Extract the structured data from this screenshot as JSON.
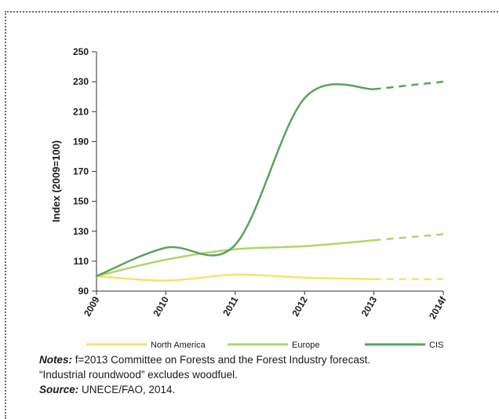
{
  "chart_data": {
    "type": "line",
    "ylabel": "Index (2009=100)",
    "xlabel": "",
    "categories": [
      "2009",
      "2010",
      "2011",
      "2012",
      "2013",
      "2014f"
    ],
    "ylim": [
      90,
      250
    ],
    "yticks": [
      90,
      110,
      130,
      150,
      170,
      190,
      210,
      230,
      250
    ],
    "forecast_from_index": 4,
    "grid": false,
    "legend_position": "bottom",
    "series": [
      {
        "name": "North America",
        "color": "#f4e36a",
        "values": [
          100,
          97,
          101,
          99,
          98,
          98
        ]
      },
      {
        "name": "Europe",
        "color": "#b3d36b",
        "values": [
          100,
          111,
          118,
          120,
          124,
          128
        ]
      },
      {
        "name": "CIS",
        "color": "#5aa35d",
        "values": [
          100,
          119,
          121,
          219,
          225,
          230
        ]
      }
    ]
  },
  "notes": {
    "notes_label": "Notes:",
    "notes_text": " f=2013 Committee on Forests and the Forest Industry forecast.",
    "notes_line2": "“Industrial roundwood” excludes woodfuel.",
    "source_label": "Source:",
    "source_text": " UNECE/FAO, 2014."
  }
}
